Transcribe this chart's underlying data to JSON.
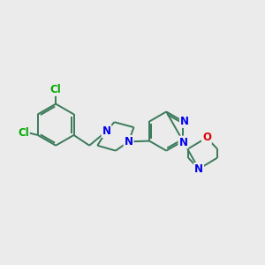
{
  "bg_color": "#ebebeb",
  "bond_color": "#3a7a5a",
  "N_color": "#0000ee",
  "O_color": "#dd0000",
  "Cl_color": "#00aa00",
  "line_width": 1.4,
  "font_size": 8.5,
  "figsize": [
    3.0,
    3.0
  ],
  "dpi": 100,
  "xlim": [
    0,
    10
  ],
  "ylim": [
    0,
    10
  ]
}
